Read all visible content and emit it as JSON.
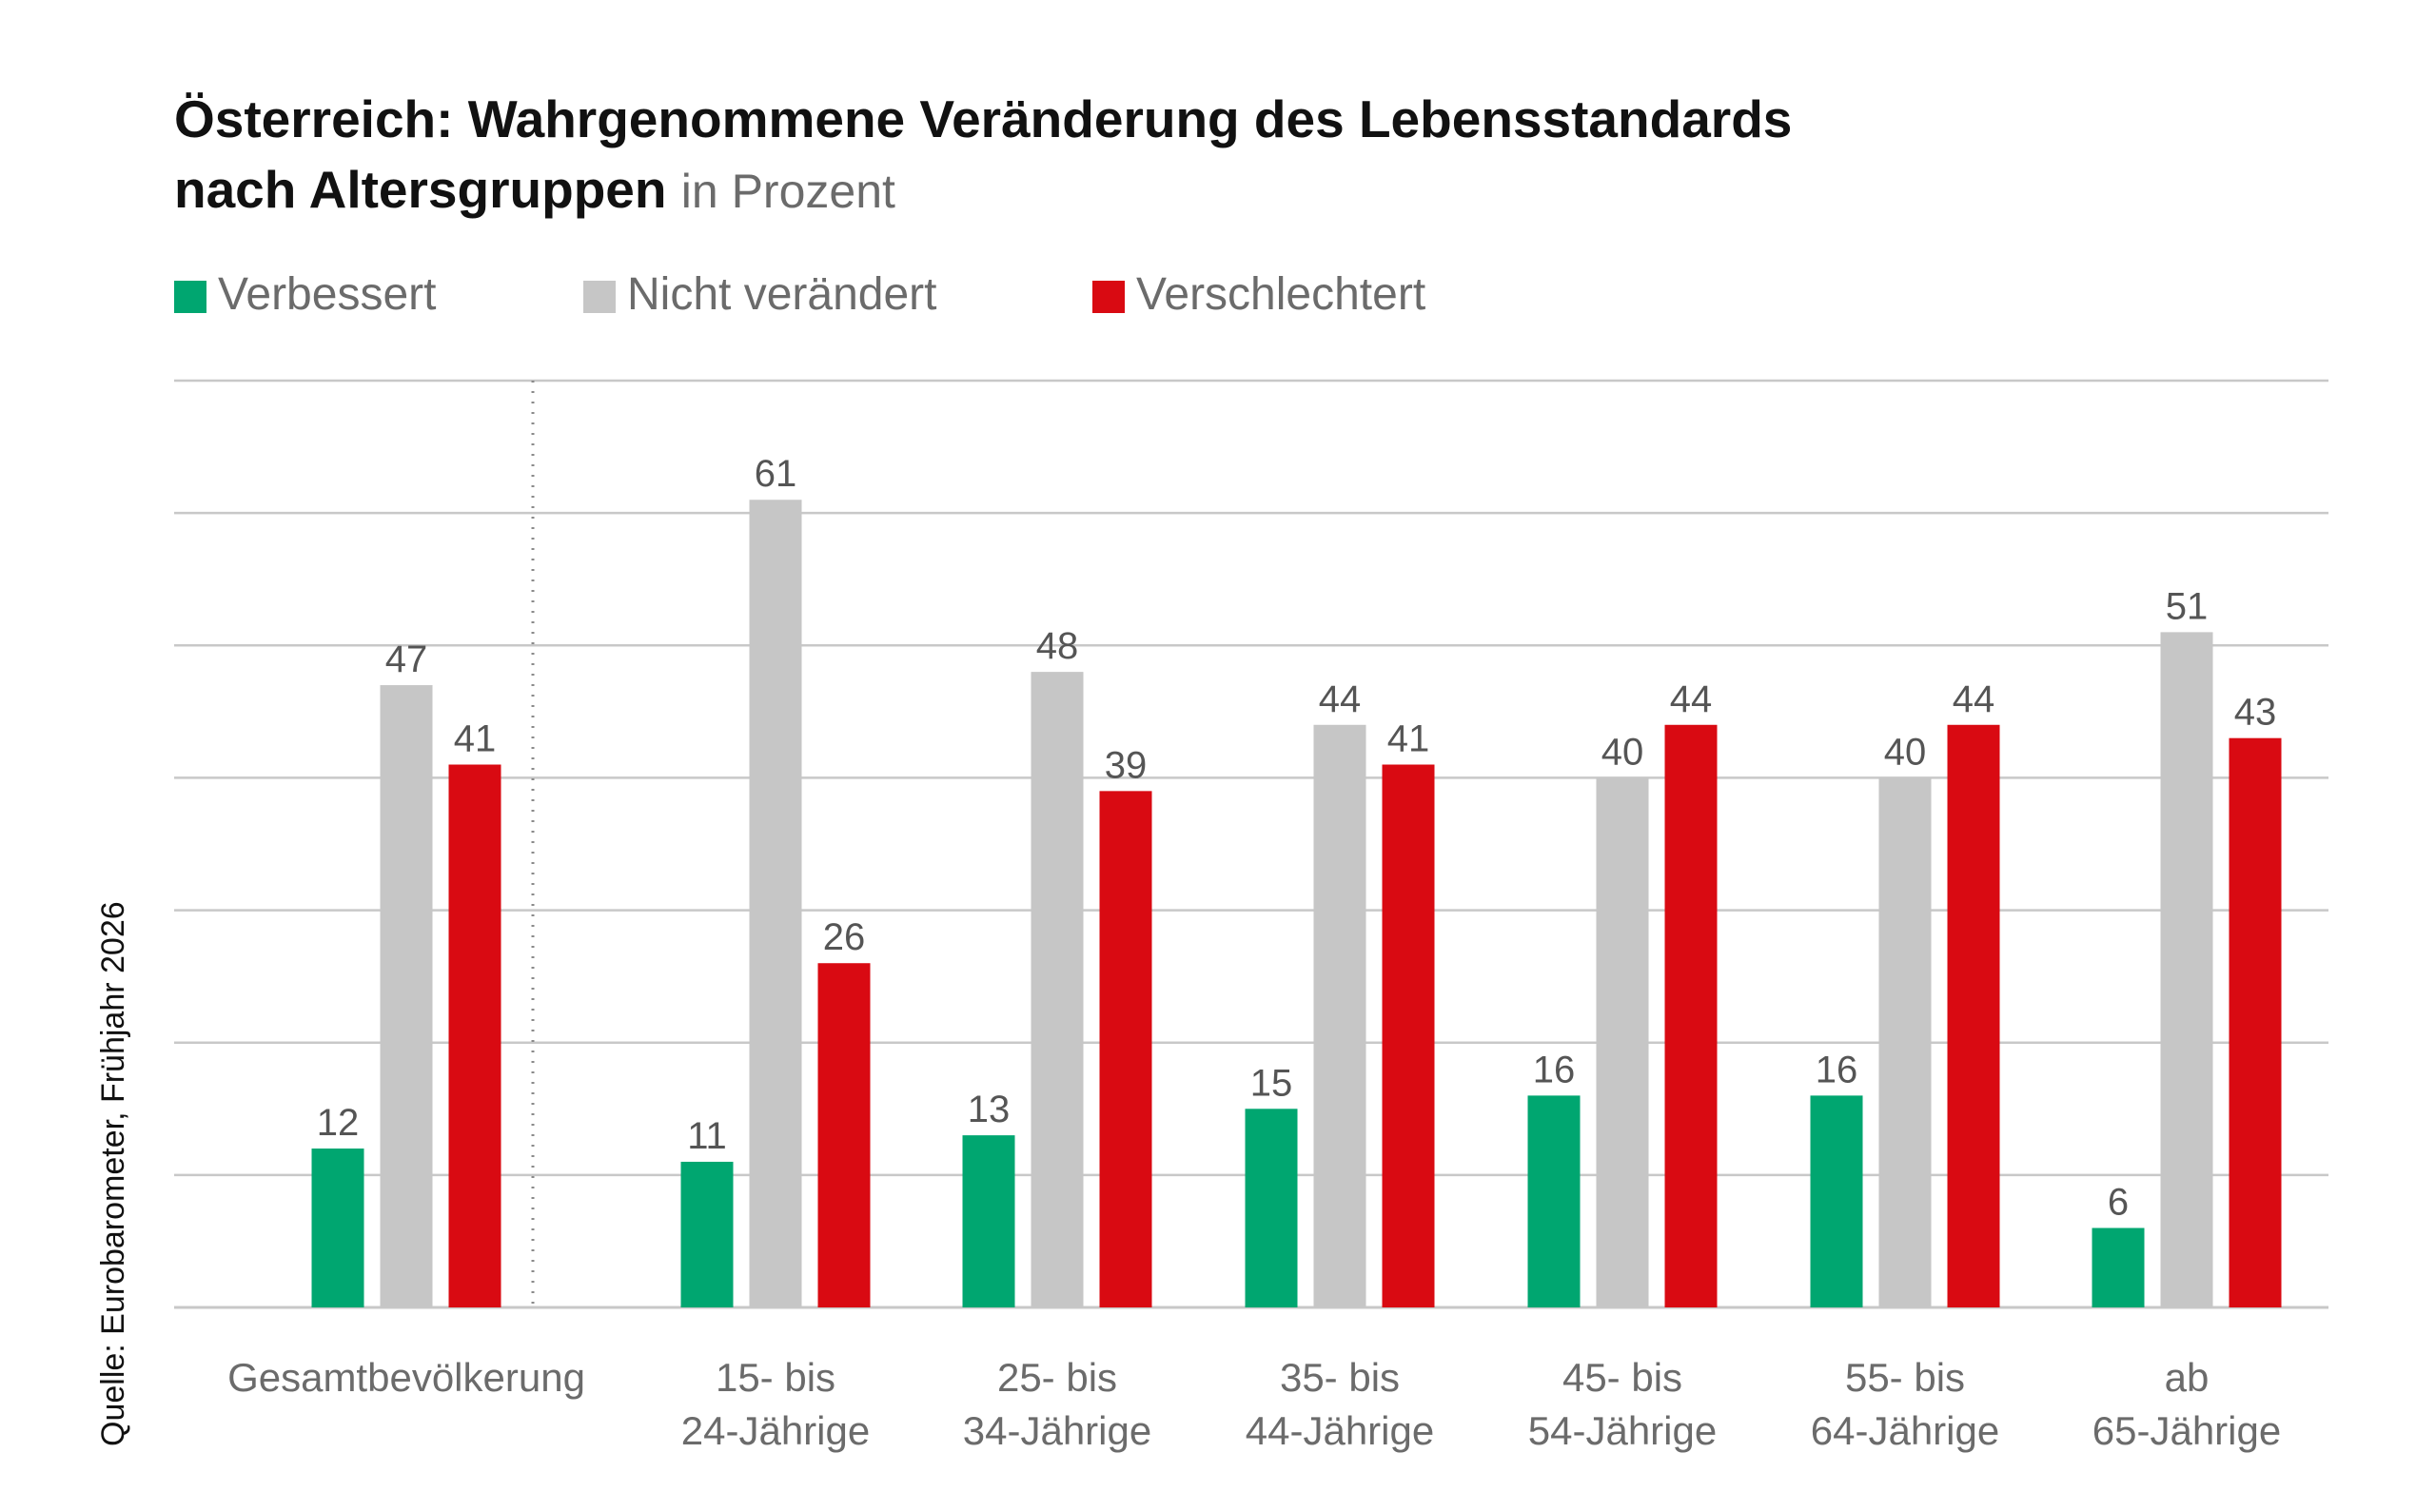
{
  "header": {
    "title_line1": "Österreich: Wahrgenommene Veränderung des Lebensstandards",
    "title_line2": "nach Altersgruppen",
    "subtitle": "in Prozent"
  },
  "source": "Quelle: Eurobarometer, Frühjahr 2026",
  "colors": {
    "verbessert": "#00a670",
    "nicht_veraendert": "#c6c6c6",
    "verschlechtert": "#d90a12",
    "grid": "#c8c8c8",
    "label": "#555555"
  },
  "chart_data": {
    "type": "bar",
    "title": "Österreich: Wahrgenommene Veränderung des Lebensstandards nach Altersgruppen",
    "subtitle": "in Prozent",
    "categories": [
      [
        "Gesamtbevölkerung"
      ],
      [
        "15- bis",
        "24-Jährige"
      ],
      [
        "25- bis",
        "34-Jährige"
      ],
      [
        "35- bis",
        "44-Jährige"
      ],
      [
        "45- bis",
        "54-Jährige"
      ],
      [
        "55- bis",
        "64-Jährige"
      ],
      [
        "ab",
        "65-Jährige"
      ]
    ],
    "series": [
      {
        "name": "Verbessert",
        "color": "#00a670",
        "values": [
          12,
          11,
          13,
          15,
          16,
          16,
          6
        ]
      },
      {
        "name": "Nicht verändert",
        "color": "#c6c6c6",
        "values": [
          47,
          61,
          48,
          44,
          40,
          40,
          51
        ]
      },
      {
        "name": "Verschlechtert",
        "color": "#d90a12",
        "values": [
          41,
          26,
          39,
          41,
          44,
          44,
          43
        ]
      }
    ],
    "ylim": [
      0,
      70
    ],
    "grid": true,
    "legend_position": "top-left",
    "separator_after_first_category": true
  }
}
